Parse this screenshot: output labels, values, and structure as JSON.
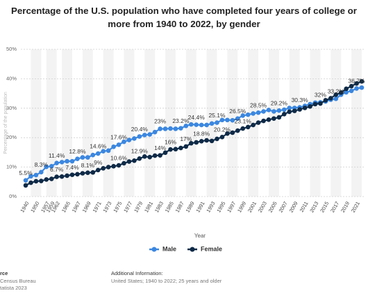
{
  "chart_data": {
    "type": "line",
    "title": "Percentage of the U.S. population who have completed four years of college or more from 1940 to 2022, by gender",
    "x_label": "Year",
    "y_label": "Percentage of the population",
    "categories": [
      "1940",
      null,
      "1950",
      null,
      "1957",
      "1959",
      "1962",
      null,
      "1965",
      null,
      "1967",
      null,
      "1969",
      null,
      "1971",
      null,
      "1973",
      null,
      "1975",
      null,
      "1977",
      null,
      "1979",
      null,
      "1981",
      null,
      "1983",
      null,
      "1985",
      null,
      "1987",
      null,
      "1989",
      null,
      "1991",
      null,
      "1993",
      null,
      "1995",
      null,
      "1997",
      null,
      "1999",
      null,
      "2001",
      null,
      "2003",
      null,
      "2005",
      null,
      "2007",
      null,
      "2009",
      null,
      "2011",
      null,
      "2013",
      null,
      "2015",
      null,
      "2017",
      null,
      "2019",
      null,
      "2021",
      null
    ],
    "series": [
      {
        "name": "Male",
        "color": "#3b87e0",
        "values": [
          5.5,
          6.9,
          7.3,
          8.3,
          10.1,
          10.3,
          11.4,
          11.7,
          12.0,
          12.0,
          12.8,
          13.3,
          13.3,
          14.1,
          14.6,
          15.4,
          15.6,
          16.9,
          17.6,
          18.6,
          19.2,
          19.7,
          20.4,
          20.9,
          21.1,
          21.9,
          23.0,
          23.0,
          23.1,
          23.0,
          23.2,
          24.0,
          24.5,
          24.4,
          24.3,
          24.3,
          24.8,
          25.1,
          26.0,
          26.0,
          25.9,
          26.5,
          27.5,
          27.8,
          28.2,
          28.5,
          28.9,
          29.4,
          28.9,
          29.2,
          29.5,
          30.1,
          30.1,
          30.3,
          30.8,
          31.4,
          31.9,
          32.0,
          32.3,
          32.9,
          33.2,
          34.6,
          35.4,
          35.9,
          36.7,
          37.0
        ],
        "value_labels": [
          "5.5%",
          null,
          null,
          "8.3%",
          null,
          null,
          "11.4%",
          null,
          null,
          null,
          "12.8%",
          null,
          null,
          null,
          "14.6%",
          null,
          null,
          null,
          "17.6%",
          null,
          null,
          null,
          "20.4%",
          null,
          null,
          null,
          "23%",
          null,
          null,
          null,
          "23.2%",
          null,
          null,
          "24.4%",
          null,
          null,
          null,
          "25.1%",
          null,
          null,
          null,
          "26.5%",
          null,
          null,
          null,
          "28.5%",
          null,
          null,
          null,
          "29.2%",
          null,
          null,
          null,
          "30.3%",
          null,
          null,
          null,
          "32%",
          null,
          null,
          "33.2%",
          null,
          null,
          null,
          "36.7%",
          null
        ]
      },
      {
        "name": "Female",
        "color": "#0e2a47",
        "values": [
          3.8,
          4.7,
          5.2,
          5.3,
          5.8,
          6.0,
          6.7,
          6.8,
          7.1,
          7.4,
          7.6,
          7.9,
          8.1,
          8.2,
          9.0,
          9.6,
          10.0,
          10.3,
          10.6,
          11.3,
          11.9,
          12.2,
          12.9,
          13.6,
          13.4,
          13.9,
          14.0,
          14.9,
          16.0,
          16.1,
          16.5,
          17.0,
          18.1,
          18.4,
          18.8,
          19.1,
          18.9,
          19.6,
          20.2,
          21.4,
          21.7,
          22.4,
          23.1,
          23.6,
          24.3,
          25.1,
          25.7,
          26.1,
          26.5,
          26.9,
          28.0,
          28.8,
          29.1,
          29.6,
          30.1,
          30.6,
          31.4,
          31.6,
          32.7,
          33.4,
          34.6,
          35.3,
          36.6,
          37.5,
          38.4,
          39.1
        ],
        "value_labels": [
          null,
          null,
          null,
          null,
          null,
          null,
          "6.7%",
          null,
          null,
          "7.4%",
          null,
          null,
          "8.1%",
          null,
          "9%",
          null,
          null,
          null,
          "10.6%",
          null,
          null,
          null,
          "12.9%",
          null,
          null,
          null,
          "14%",
          null,
          "16%",
          null,
          null,
          "17%",
          null,
          null,
          "18.8%",
          null,
          null,
          null,
          "20.2%",
          null,
          null,
          null,
          "23.1%",
          null,
          null,
          null,
          null,
          null,
          null,
          null,
          null,
          null,
          null,
          null,
          null,
          null,
          null,
          null,
          null,
          null,
          null,
          null,
          null,
          null,
          null,
          null
        ]
      }
    ],
    "ylim": [
      0,
      50
    ],
    "yticks": [
      {
        "value": 0,
        "label": "0%"
      },
      {
        "value": 10,
        "label": "10%"
      },
      {
        "value": 20,
        "label": "20%"
      },
      {
        "value": 30,
        "label": "30%"
      },
      {
        "value": 40,
        "label": "40%"
      },
      {
        "value": 50,
        "label": "50%"
      }
    ],
    "grid": true,
    "legend": "bottom",
    "footer": {
      "source_title": "rce",
      "source_lines": [
        "Census Bureau",
        "tatista 2023"
      ],
      "info_title": "Additional Information:",
      "info_text": "United States; 1940 to 2022; 25 years and older"
    }
  }
}
